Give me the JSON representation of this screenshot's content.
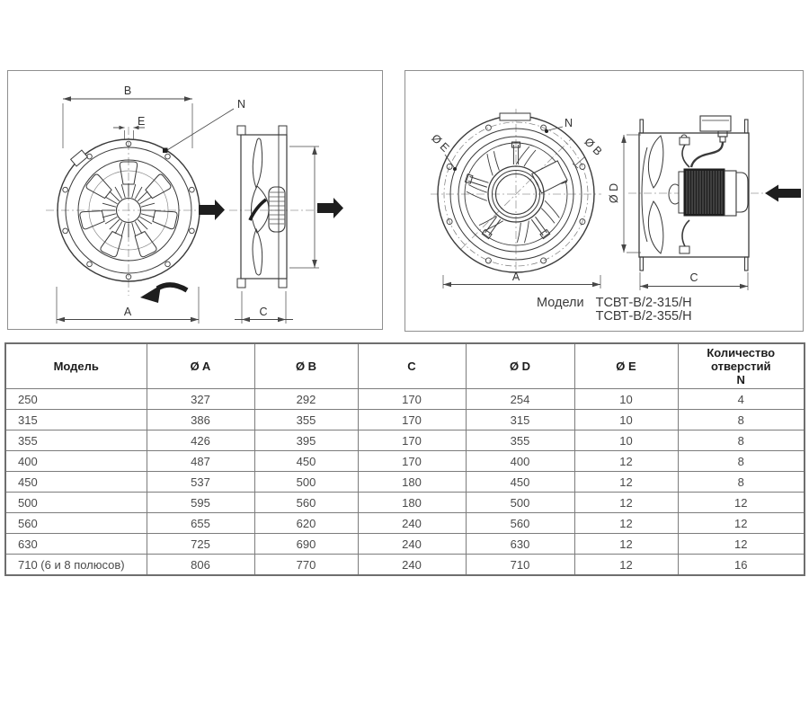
{
  "left_panel": {
    "labels": {
      "b": "B",
      "e": "E",
      "n": "N",
      "a": "A",
      "c": "C"
    }
  },
  "right_panel": {
    "labels": {
      "de": "Ø E",
      "n": "N",
      "db": "Ø B",
      "a": "A",
      "dd": "Ø D",
      "c": "C"
    },
    "models_label": "Модели",
    "models": [
      "ТСВТ-В/2-315/Н",
      "ТСВТ-В/2-355/Н"
    ]
  },
  "table": {
    "columns": [
      "Модель",
      "Ø A",
      "Ø B",
      "C",
      "Ø D",
      "Ø E",
      "Количество\nотверстий\nN"
    ],
    "rows": [
      [
        "250",
        "327",
        "292",
        "170",
        "254",
        "10",
        "4"
      ],
      [
        "315",
        "386",
        "355",
        "170",
        "315",
        "10",
        "8"
      ],
      [
        "355",
        "426",
        "395",
        "170",
        "355",
        "10",
        "8"
      ],
      [
        "400",
        "487",
        "450",
        "170",
        "400",
        "12",
        "8"
      ],
      [
        "450",
        "537",
        "500",
        "180",
        "450",
        "12",
        "8"
      ],
      [
        "500",
        "595",
        "560",
        "180",
        "500",
        "12",
        "12"
      ],
      [
        "560",
        "655",
        "620",
        "240",
        "560",
        "12",
        "12"
      ],
      [
        "630",
        "725",
        "690",
        "240",
        "630",
        "12",
        "12"
      ],
      [
        "710 (6 и 8 полюсов)",
        "806",
        "770",
        "240",
        "710",
        "12",
        "16"
      ]
    ]
  },
  "colors": {
    "line": "#3a3a3a",
    "dim": "#474747",
    "center": "#9a9a9a"
  }
}
